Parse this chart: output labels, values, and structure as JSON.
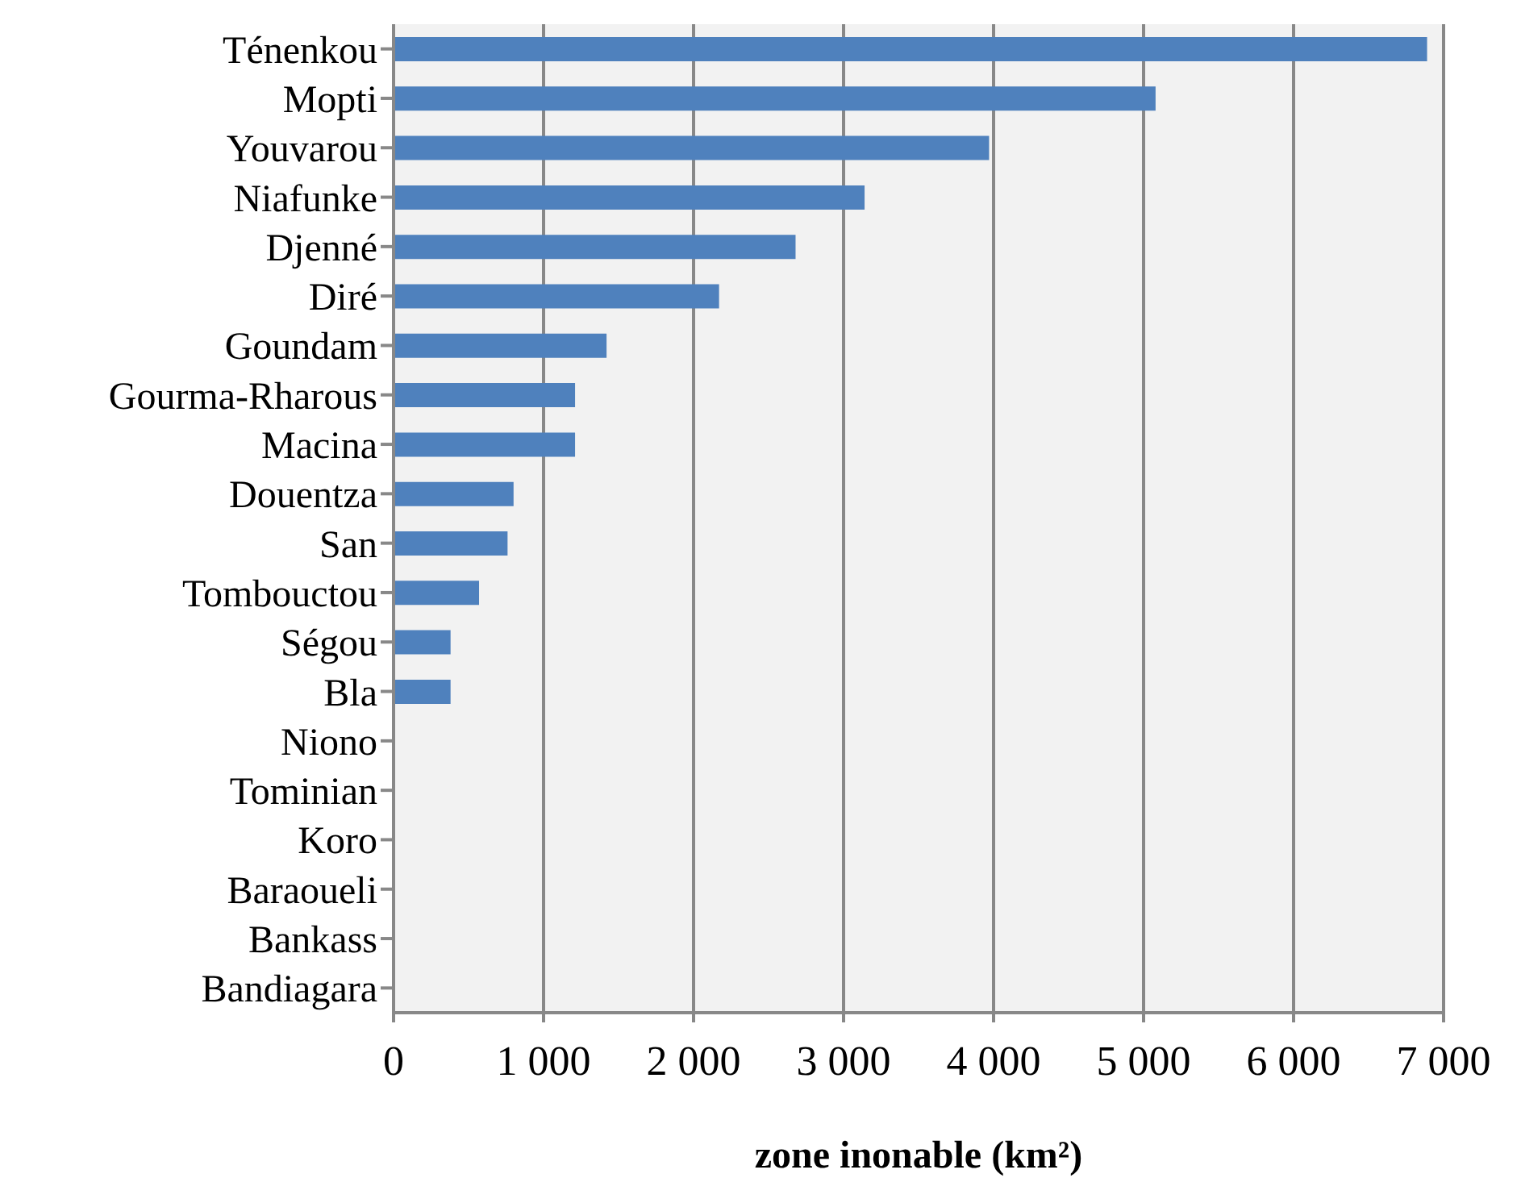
{
  "chart_data": {
    "type": "bar",
    "orientation": "horizontal",
    "xlabel": "zone inonable (km²)",
    "categories": [
      "Ténenkou",
      "Mopti",
      "Youvarou",
      "Niafunke",
      "Djenné",
      "Diré",
      "Goundam",
      "Gourma-Rharous",
      "Macina",
      "Douentza",
      "San",
      "Tombouctou",
      "Ségou",
      "Bla",
      "Niono",
      "Tominian",
      "Koro",
      "Baraoueli",
      "Bankass",
      "Bandiagara"
    ],
    "values": [
      6890,
      5080,
      3970,
      3140,
      2680,
      2170,
      1420,
      1210,
      1210,
      800,
      760,
      570,
      380,
      380,
      0,
      0,
      0,
      0,
      0,
      0
    ],
    "color": "#4f81bd",
    "xlim": [
      0,
      7000
    ],
    "xticks": [
      {
        "value": 0,
        "label": "0"
      },
      {
        "value": 1000,
        "label": "1 000"
      },
      {
        "value": 2000,
        "label": "2 000"
      },
      {
        "value": 3000,
        "label": "3 000"
      },
      {
        "value": 4000,
        "label": "4 000"
      },
      {
        "value": 5000,
        "label": "5 000"
      },
      {
        "value": 6000,
        "label": "6 000"
      },
      {
        "value": 7000,
        "label": "7 000"
      }
    ],
    "grid": "x",
    "legend": false
  }
}
